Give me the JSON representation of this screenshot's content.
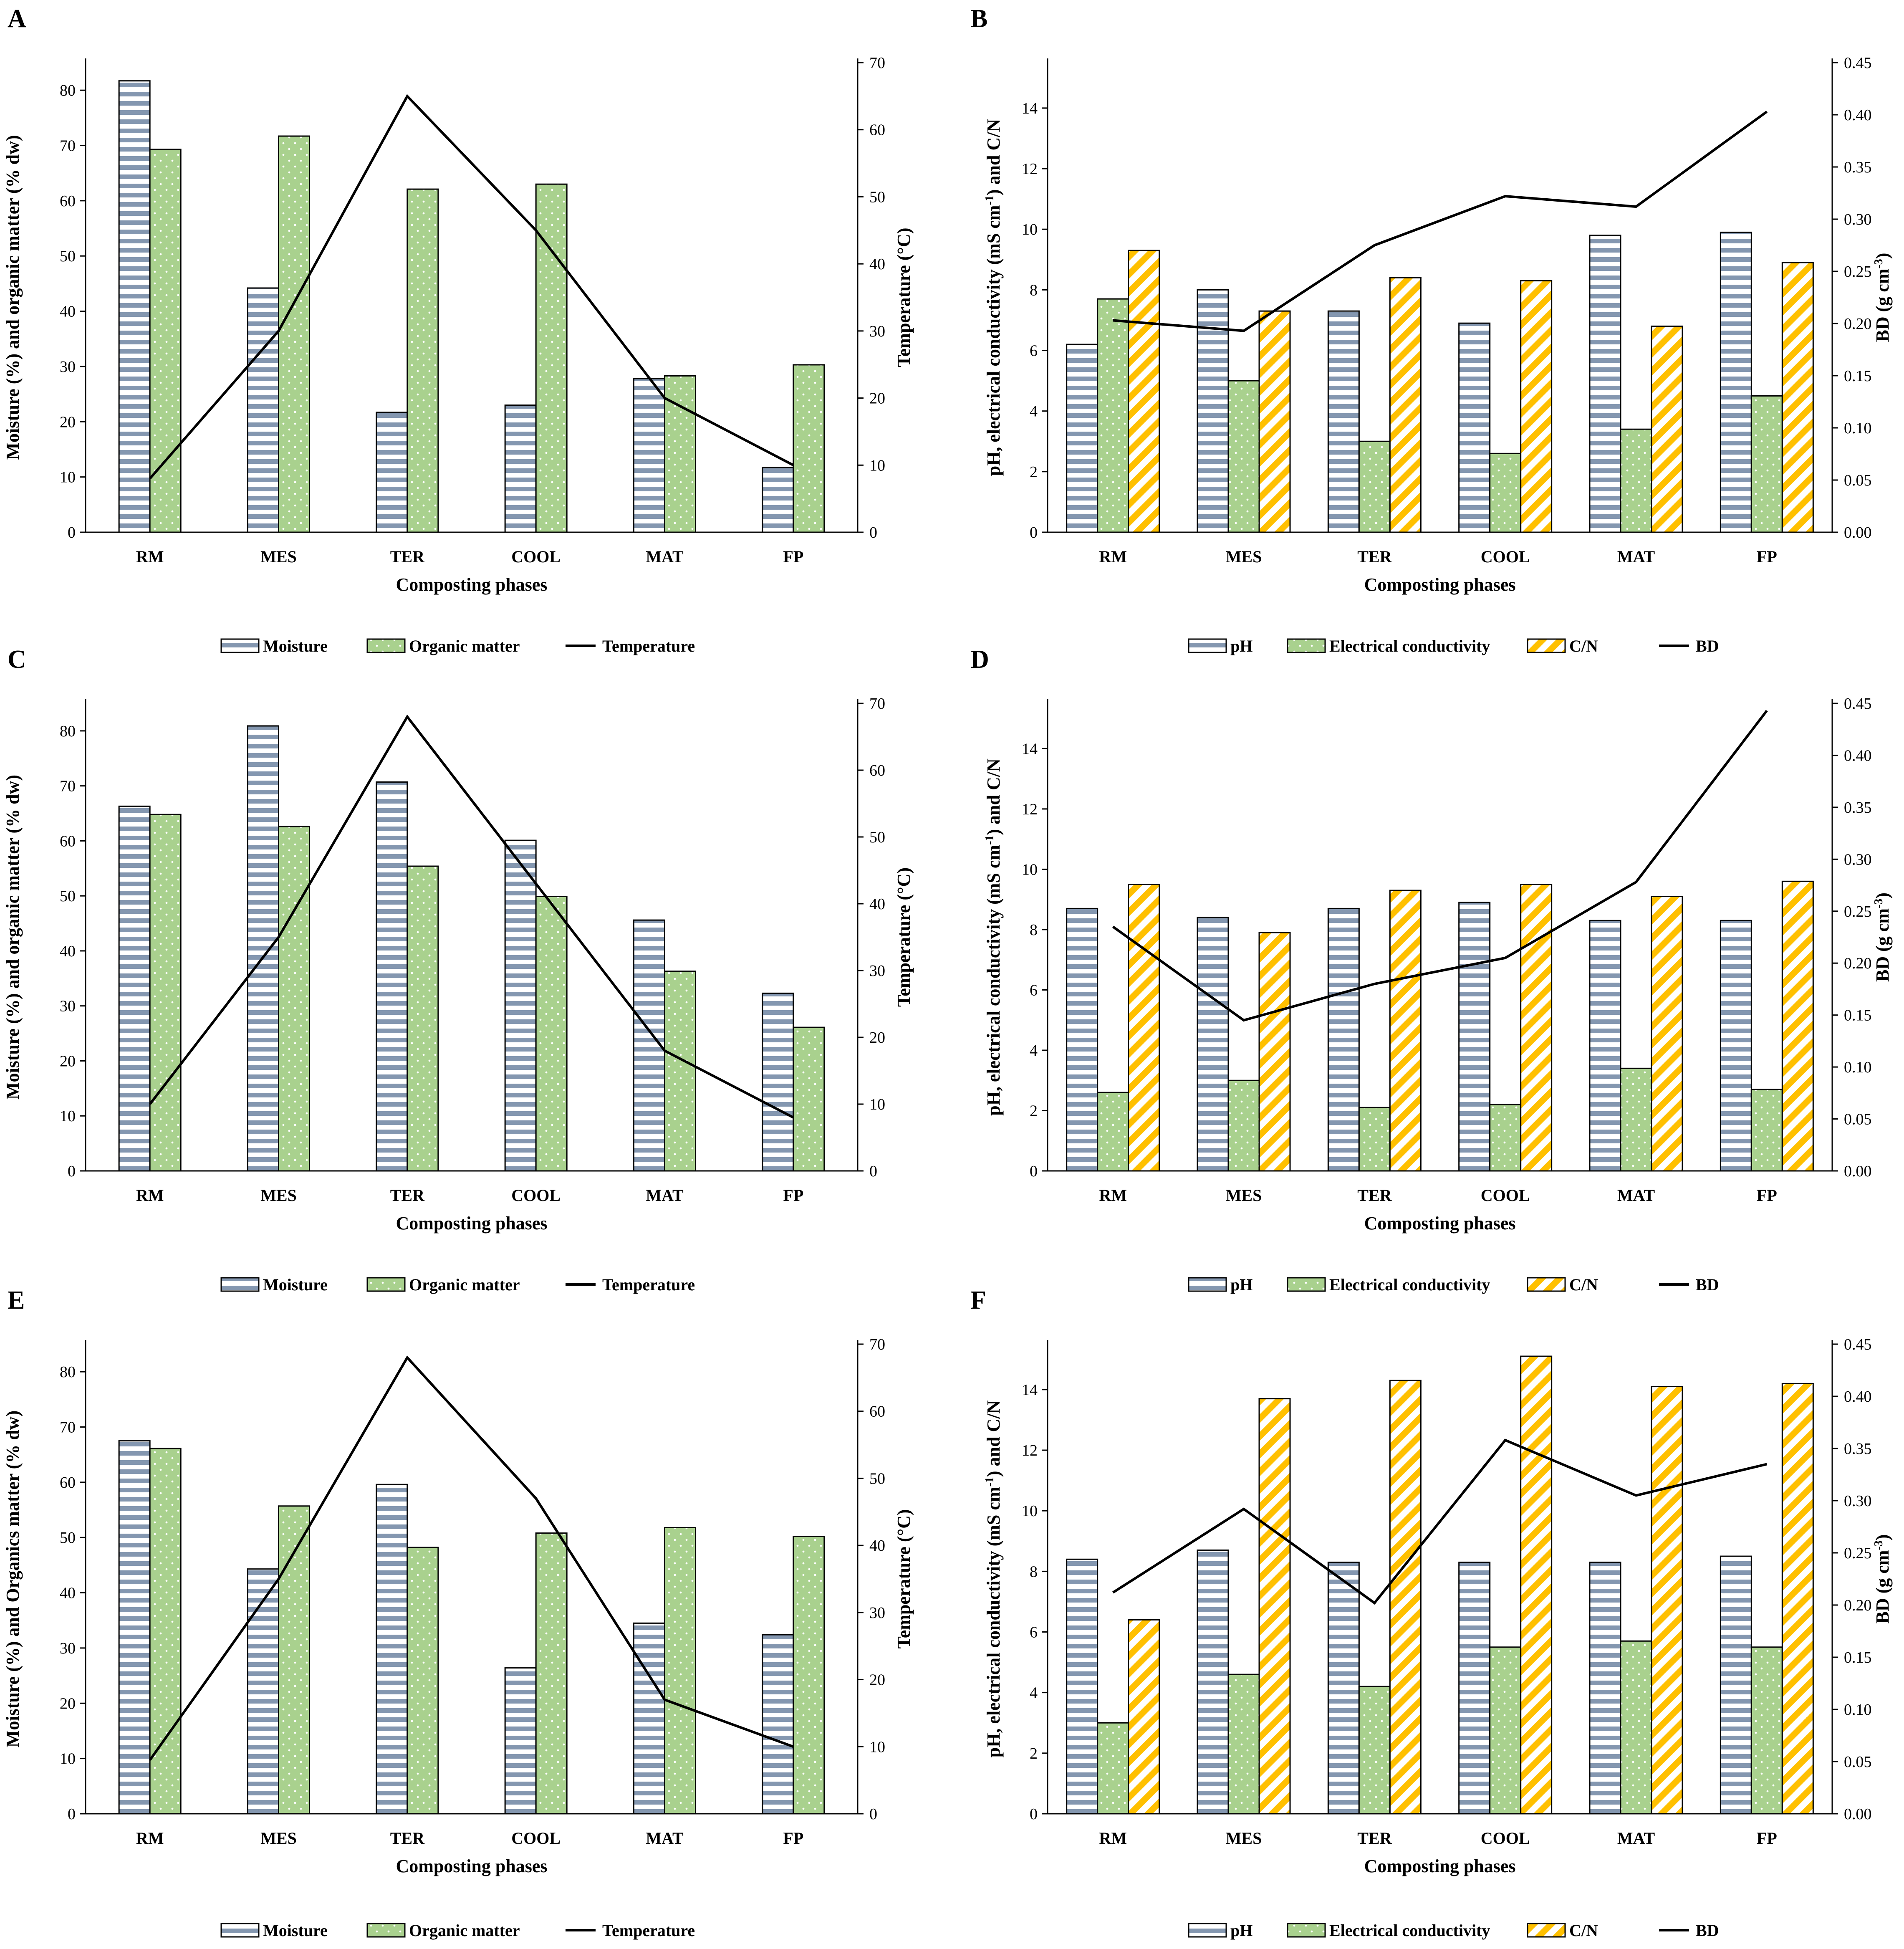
{
  "figure": {
    "colors": {
      "moisture_fill": "#ffffff",
      "moisture_stripe": "#8497b0",
      "organic_fill": "#a9d18e",
      "cn_fill": "#ffc000",
      "line": "#000000",
      "axis": "#000000"
    }
  },
  "chart_data": [
    {
      "panel": "A",
      "type": "bar",
      "categories": [
        "RM",
        "MES",
        "TER",
        "COOL",
        "MAT",
        "FP"
      ],
      "xlabel": "Composting phases",
      "ylabel": "Moisture (%) and organic matter (% dw)",
      "y2label": "Temperature (°C)",
      "ylim": [
        0,
        85
      ],
      "yticks": [
        0,
        10,
        20,
        30,
        40,
        50,
        60,
        70,
        80
      ],
      "y2lim": [
        0,
        70
      ],
      "y2ticks": [
        0,
        10,
        20,
        30,
        40,
        50,
        60,
        70
      ],
      "series": [
        {
          "name": "Moisture",
          "kind": "moisture",
          "axis": "left",
          "values": [
            81.7,
            44.2,
            21.7,
            23.0,
            27.8,
            11.7
          ]
        },
        {
          "name": "Organic matter",
          "kind": "organic",
          "axis": "left",
          "values": [
            69.3,
            71.7,
            62.1,
            63.0,
            28.3,
            30.3
          ]
        },
        {
          "name": "Temperature",
          "kind": "line",
          "axis": "right",
          "values": [
            8,
            30,
            65,
            45,
            20,
            10
          ]
        }
      ]
    },
    {
      "panel": "B",
      "type": "bar",
      "categories": [
        "RM",
        "MES",
        "TER",
        "COOL",
        "MAT",
        "FP"
      ],
      "xlabel": "Composting phases",
      "ylabel": "pH, electrical conductivity (mS cm-1) and C/N",
      "y2label": "BD (g cm-3)",
      "ylim": [
        0,
        15.5
      ],
      "yticks": [
        0,
        2,
        4,
        6,
        8,
        10,
        12,
        14
      ],
      "y2lim": [
        0,
        0.45
      ],
      "y2ticks": [
        "0.00",
        "0.05",
        "0.10",
        "0.15",
        "0.20",
        "0.25",
        "0.30",
        "0.35",
        "0.40",
        "0.45"
      ],
      "series": [
        {
          "name": "pH",
          "kind": "moisture",
          "axis": "left",
          "values": [
            6.2,
            8.0,
            7.3,
            6.9,
            9.8,
            9.9
          ]
        },
        {
          "name": "Electrical conductivity",
          "kind": "organic",
          "axis": "left",
          "values": [
            7.7,
            5.0,
            3.0,
            2.6,
            3.4,
            4.5
          ]
        },
        {
          "name": "C/N",
          "kind": "cn",
          "axis": "left",
          "values": [
            9.3,
            7.3,
            8.4,
            8.3,
            6.8,
            8.9
          ]
        },
        {
          "name": "BD",
          "kind": "line",
          "axis": "right",
          "values": [
            0.203,
            0.193,
            0.275,
            0.322,
            0.312,
            0.403
          ]
        }
      ]
    },
    {
      "panel": "C",
      "type": "bar",
      "categories": [
        "RM",
        "MES",
        "TER",
        "COOL",
        "MAT",
        "FP"
      ],
      "xlabel": "Composting phases",
      "ylabel": "Moisture (%) and organic matter (% dw)",
      "y2label": "Temperature (°C)",
      "ylim": [
        0,
        85
      ],
      "yticks": [
        0,
        10,
        20,
        30,
        40,
        50,
        60,
        70,
        80
      ],
      "y2lim": [
        0,
        70
      ],
      "y2ticks": [
        0,
        10,
        20,
        30,
        40,
        50,
        60,
        70
      ],
      "series": [
        {
          "name": "Moisture",
          "kind": "moisture",
          "axis": "left",
          "values": [
            66.3,
            80.9,
            70.7,
            60.1,
            45.6,
            32.3
          ]
        },
        {
          "name": "Organic matter",
          "kind": "organic",
          "axis": "left",
          "values": [
            64.8,
            62.6,
            55.4,
            49.9,
            36.3,
            26.1
          ]
        },
        {
          "name": "Temperature",
          "kind": "line",
          "axis": "right",
          "values": [
            10,
            35,
            68,
            43,
            18,
            8
          ]
        }
      ]
    },
    {
      "panel": "D",
      "type": "bar",
      "categories": [
        "RM",
        "MES",
        "TER",
        "COOL",
        "MAT",
        "FP"
      ],
      "xlabel": "Composting phases",
      "ylabel": "pH, electrical conductivity (mS cm-1) and C/N",
      "y2label": "BD (g cm-3)",
      "ylim": [
        0,
        15.5
      ],
      "yticks": [
        0,
        2,
        4,
        6,
        8,
        10,
        12,
        14
      ],
      "y2lim": [
        0,
        0.45
      ],
      "y2ticks": [
        "0.00",
        "0.05",
        "0.10",
        "0.15",
        "0.20",
        "0.25",
        "0.30",
        "0.35",
        "0.40",
        "0.45"
      ],
      "series": [
        {
          "name": "pH",
          "kind": "moisture",
          "axis": "left",
          "values": [
            8.7,
            8.4,
            8.7,
            8.9,
            8.3,
            8.3
          ]
        },
        {
          "name": "Electrical conductivity",
          "kind": "organic",
          "axis": "left",
          "values": [
            2.6,
            3.0,
            2.1,
            2.2,
            3.4,
            2.7
          ]
        },
        {
          "name": "C/N",
          "kind": "cn",
          "axis": "left",
          "values": [
            9.5,
            7.9,
            9.3,
            9.5,
            9.1,
            9.6
          ]
        },
        {
          "name": "BD",
          "kind": "line",
          "axis": "right",
          "values": [
            0.235,
            0.145,
            0.18,
            0.205,
            0.278,
            0.443
          ]
        }
      ]
    },
    {
      "panel": "E",
      "type": "bar",
      "categories": [
        "RM",
        "MES",
        "TER",
        "COOL",
        "MAT",
        "FP"
      ],
      "xlabel": "Composting phases",
      "ylabel": "Moisture (%) and Organics matter (% dw)",
      "y2label": "Temperature (°C)",
      "ylim": [
        0,
        85
      ],
      "yticks": [
        0,
        10,
        20,
        30,
        40,
        50,
        60,
        70,
        80
      ],
      "y2lim": [
        0,
        70
      ],
      "y2ticks": [
        0,
        10,
        20,
        30,
        40,
        50,
        60,
        70
      ],
      "series": [
        {
          "name": "Moisture",
          "kind": "moisture",
          "axis": "left",
          "values": [
            67.5,
            44.3,
            59.6,
            26.4,
            34.5,
            32.4
          ]
        },
        {
          "name": "Organic matter",
          "kind": "organic",
          "axis": "left",
          "values": [
            66.1,
            55.7,
            48.2,
            50.8,
            51.8,
            50.2
          ]
        },
        {
          "name": "Temperature",
          "kind": "line",
          "axis": "right",
          "values": [
            8,
            35,
            68,
            47,
            17,
            10
          ]
        }
      ]
    },
    {
      "panel": "F",
      "type": "bar",
      "categories": [
        "RM",
        "MES",
        "TER",
        "COOL",
        "MAT",
        "FP"
      ],
      "xlabel": "Composting phases",
      "ylabel": "pH, electrical conductivity (mS cm-1) and C/N",
      "y2label": "BD (g cm-3)",
      "ylim": [
        0,
        15.5
      ],
      "yticks": [
        0,
        2,
        4,
        6,
        8,
        10,
        12,
        14
      ],
      "y2lim": [
        0,
        0.45
      ],
      "y2ticks": [
        "0.00",
        "0.05",
        "0.10",
        "0.15",
        "0.20",
        "0.25",
        "0.30",
        "0.35",
        "0.40",
        "0.45"
      ],
      "series": [
        {
          "name": "pH",
          "kind": "moisture",
          "axis": "left",
          "values": [
            8.4,
            8.7,
            8.3,
            8.3,
            8.3,
            8.5
          ]
        },
        {
          "name": "Electrical conductivity",
          "kind": "organic",
          "axis": "left",
          "values": [
            3.0,
            4.6,
            4.2,
            5.5,
            5.7,
            5.5
          ]
        },
        {
          "name": "C/N",
          "kind": "cn",
          "axis": "left",
          "values": [
            6.4,
            13.7,
            14.3,
            15.1,
            14.1,
            14.2
          ]
        },
        {
          "name": "BD",
          "kind": "line",
          "axis": "right",
          "values": [
            0.212,
            0.292,
            0.202,
            0.358,
            0.305,
            0.335
          ]
        }
      ]
    }
  ]
}
